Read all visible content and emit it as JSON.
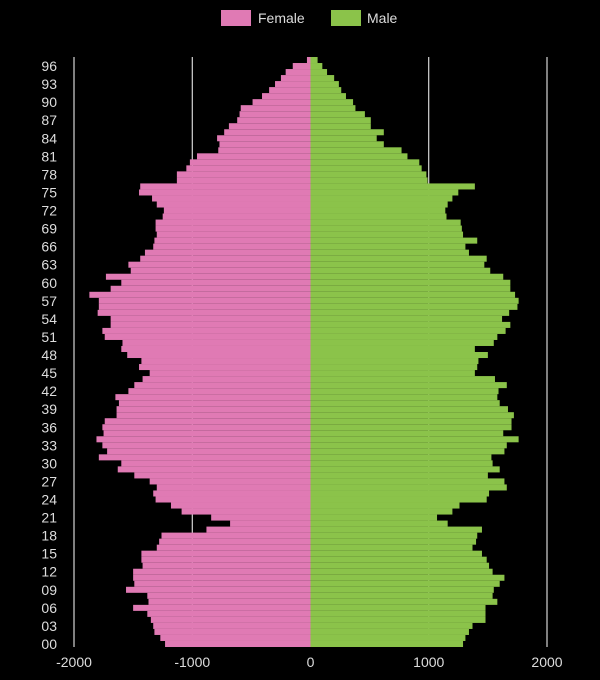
{
  "chart_data": {
    "type": "bar",
    "orientation": "horizontal",
    "chart_kind": "population-pyramid",
    "legend_placement": "top-center",
    "grid": "vertical",
    "xlim": [
      -2000,
      2000
    ],
    "x_ticks": [
      -2000,
      -1000,
      0,
      1000,
      2000
    ],
    "x_tick_labels": [
      "-2000",
      "-1000",
      "0",
      "1000",
      "2000"
    ],
    "y_tick_labels": [
      "96",
      "93",
      "90",
      "87",
      "84",
      "81",
      "78",
      "75",
      "72",
      "69",
      "66",
      "63",
      "60",
      "57",
      "54",
      "51",
      "48",
      "45",
      "42",
      "39",
      "36",
      "33",
      "30",
      "27",
      "24",
      "21",
      "18",
      "15",
      "12",
      "09",
      "06",
      "03",
      "00"
    ],
    "ages": [
      0,
      1,
      2,
      3,
      4,
      5,
      6,
      7,
      8,
      9,
      10,
      11,
      12,
      13,
      14,
      15,
      16,
      17,
      18,
      19,
      20,
      21,
      22,
      23,
      24,
      25,
      26,
      27,
      28,
      29,
      30,
      31,
      32,
      33,
      34,
      35,
      36,
      37,
      38,
      39,
      40,
      41,
      42,
      43,
      44,
      45,
      46,
      47,
      48,
      49,
      50,
      51,
      52,
      53,
      54,
      55,
      56,
      57,
      58,
      59,
      60,
      61,
      62,
      63,
      64,
      65,
      66,
      67,
      68,
      69,
      70,
      71,
      72,
      73,
      74,
      75,
      76,
      77,
      78,
      79,
      80,
      81,
      82,
      83,
      84,
      85,
      86,
      87,
      88,
      89,
      90,
      91,
      92,
      93,
      94,
      95,
      96,
      97
    ],
    "series": [
      {
        "name": "Female",
        "color": "#e07ab4",
        "values": [
          -1230,
          -1270,
          -1320,
          -1330,
          -1350,
          -1380,
          -1500,
          -1370,
          -1380,
          -1560,
          -1490,
          -1500,
          -1500,
          -1420,
          -1430,
          -1430,
          -1300,
          -1280,
          -1260,
          -880,
          -680,
          -840,
          -1090,
          -1180,
          -1310,
          -1330,
          -1300,
          -1360,
          -1490,
          -1630,
          -1600,
          -1790,
          -1720,
          -1760,
          -1810,
          -1750,
          -1760,
          -1740,
          -1640,
          -1640,
          -1620,
          -1650,
          -1540,
          -1490,
          -1420,
          -1360,
          -1450,
          -1430,
          -1550,
          -1600,
          -1590,
          -1740,
          -1760,
          -1690,
          -1690,
          -1800,
          -1790,
          -1790,
          -1870,
          -1690,
          -1600,
          -1730,
          -1520,
          -1540,
          -1440,
          -1400,
          -1330,
          -1320,
          -1300,
          -1310,
          -1310,
          -1250,
          -1240,
          -1300,
          -1340,
          -1450,
          -1440,
          -1130,
          -1130,
          -1050,
          -1020,
          -960,
          -780,
          -770,
          -790,
          -730,
          -690,
          -620,
          -600,
          -590,
          -490,
          -410,
          -350,
          -300,
          -250,
          -210,
          -150,
          -30
        ]
      },
      {
        "name": "Male",
        "color": "#8bc34a",
        "values": [
          1290,
          1310,
          1340,
          1370,
          1480,
          1480,
          1480,
          1580,
          1540,
          1550,
          1600,
          1640,
          1540,
          1510,
          1490,
          1450,
          1370,
          1400,
          1410,
          1450,
          1160,
          1070,
          1200,
          1260,
          1490,
          1510,
          1660,
          1640,
          1500,
          1600,
          1540,
          1530,
          1640,
          1660,
          1760,
          1630,
          1700,
          1700,
          1720,
          1670,
          1600,
          1580,
          1590,
          1660,
          1560,
          1390,
          1410,
          1420,
          1500,
          1390,
          1550,
          1580,
          1650,
          1690,
          1620,
          1680,
          1750,
          1760,
          1730,
          1690,
          1690,
          1630,
          1520,
          1470,
          1490,
          1340,
          1310,
          1410,
          1290,
          1280,
          1270,
          1150,
          1140,
          1160,
          1200,
          1250,
          1390,
          990,
          980,
          940,
          920,
          820,
          770,
          620,
          560,
          620,
          510,
          510,
          460,
          380,
          360,
          300,
          260,
          240,
          200,
          140,
          100,
          60
        ]
      }
    ]
  }
}
